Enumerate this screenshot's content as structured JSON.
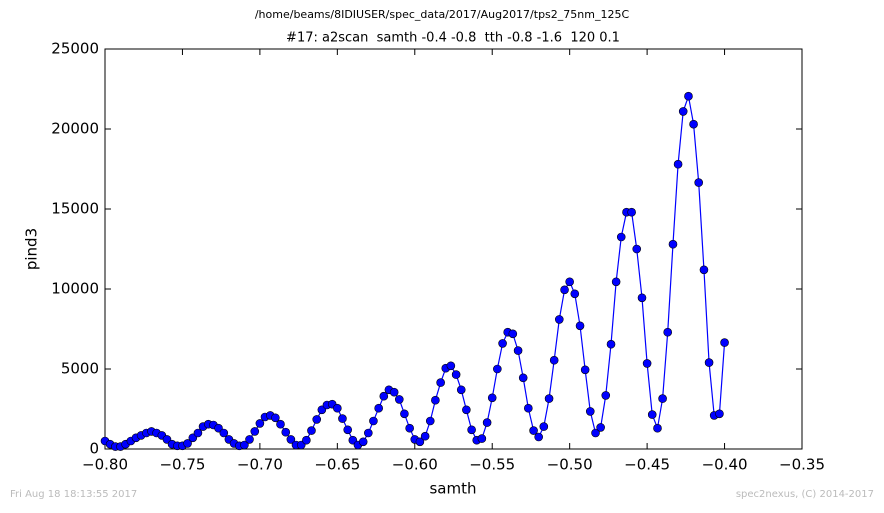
{
  "chart_data": {
    "type": "line",
    "suptitle": "/home/beams/8IDIUSER/spec_data/2017/Aug2017/tps2_75nm_125C",
    "title": "#17: a2scan  samth -0.4 -0.8  tth -0.8 -1.6  120 0.1",
    "x_label": "samth",
    "y_label": "pind3",
    "footer_left": "Fri Aug 18 18:13:55 2017",
    "footer_right": "spec2nexus, (C) 2014-2017",
    "xlim": [
      -0.8,
      -0.35
    ],
    "ylim": [
      0,
      25000
    ],
    "xticks": [
      {
        "value": -0.8,
        "label": "−0.80"
      },
      {
        "value": -0.75,
        "label": "−0.75"
      },
      {
        "value": -0.7,
        "label": "−0.70"
      },
      {
        "value": -0.65,
        "label": "−0.65"
      },
      {
        "value": -0.6,
        "label": "−0.60"
      },
      {
        "value": -0.55,
        "label": "−0.55"
      },
      {
        "value": -0.5,
        "label": "−0.50"
      },
      {
        "value": -0.45,
        "label": "−0.45"
      },
      {
        "value": -0.4,
        "label": "−0.40"
      },
      {
        "value": -0.35,
        "label": "−0.35"
      }
    ],
    "yticks": [
      0,
      5000,
      10000,
      15000,
      20000,
      25000
    ],
    "series": [
      {
        "color": "#0000ff",
        "x": [
          -0.8,
          -0.7967,
          -0.7933,
          -0.79,
          -0.7867,
          -0.7833,
          -0.78,
          -0.7767,
          -0.7733,
          -0.77,
          -0.7667,
          -0.7633,
          -0.76,
          -0.7567,
          -0.7533,
          -0.75,
          -0.7467,
          -0.7433,
          -0.74,
          -0.7367,
          -0.7333,
          -0.73,
          -0.7267,
          -0.7233,
          -0.72,
          -0.7167,
          -0.7133,
          -0.71,
          -0.7067,
          -0.7033,
          -0.7,
          -0.6967,
          -0.6933,
          -0.69,
          -0.6867,
          -0.6833,
          -0.68,
          -0.6767,
          -0.6733,
          -0.67,
          -0.6667,
          -0.6633,
          -0.66,
          -0.6567,
          -0.6533,
          -0.65,
          -0.6467,
          -0.6433,
          -0.64,
          -0.6367,
          -0.6333,
          -0.63,
          -0.6267,
          -0.6233,
          -0.62,
          -0.6167,
          -0.6133,
          -0.61,
          -0.6067,
          -0.6033,
          -0.6,
          -0.5967,
          -0.5933,
          -0.59,
          -0.5867,
          -0.5833,
          -0.58,
          -0.5767,
          -0.5733,
          -0.57,
          -0.5667,
          -0.5633,
          -0.56,
          -0.5567,
          -0.5533,
          -0.55,
          -0.5467,
          -0.5433,
          -0.54,
          -0.5367,
          -0.5333,
          -0.53,
          -0.5267,
          -0.5233,
          -0.52,
          -0.5167,
          -0.5133,
          -0.51,
          -0.5067,
          -0.5033,
          -0.5,
          -0.4967,
          -0.4933,
          -0.49,
          -0.4867,
          -0.4833,
          -0.48,
          -0.4767,
          -0.4733,
          -0.47,
          -0.4667,
          -0.4633,
          -0.46,
          -0.4567,
          -0.4533,
          -0.45,
          -0.4467,
          -0.4433,
          -0.44,
          -0.4367,
          -0.4333,
          -0.43,
          -0.4267,
          -0.4233,
          -0.42,
          -0.4167,
          -0.4133,
          -0.41,
          -0.4067,
          -0.4033,
          -0.4
        ],
        "values": [
          500,
          300,
          150,
          150,
          300,
          500,
          700,
          850,
          1000,
          1100,
          1000,
          850,
          600,
          300,
          200,
          200,
          350,
          700,
          1000,
          1400,
          1550,
          1500,
          1300,
          1000,
          600,
          350,
          200,
          250,
          600,
          1100,
          1600,
          2000,
          2100,
          1950,
          1550,
          1050,
          600,
          250,
          250,
          550,
          1150,
          1850,
          2450,
          2750,
          2800,
          2550,
          1900,
          1200,
          550,
          250,
          450,
          1000,
          1750,
          2550,
          3300,
          3700,
          3550,
          3100,
          2200,
          1300,
          600,
          450,
          800,
          1750,
          3050,
          4150,
          5050,
          5200,
          4650,
          3700,
          2450,
          1200,
          550,
          650,
          1650,
          3200,
          5000,
          6600,
          7300,
          7200,
          6150,
          4450,
          2550,
          1150,
          750,
          1400,
          3150,
          5550,
          8100,
          9950,
          10450,
          9700,
          7700,
          4950,
          2350,
          1000,
          1350,
          3350,
          6550,
          10450,
          13250,
          14800,
          14800,
          12500,
          9450,
          5350,
          2150,
          1300,
          3150,
          7300,
          12800,
          17800,
          21100,
          22050,
          20300,
          16650,
          11200,
          5400,
          2100,
          2200,
          6650
        ]
      }
    ]
  }
}
